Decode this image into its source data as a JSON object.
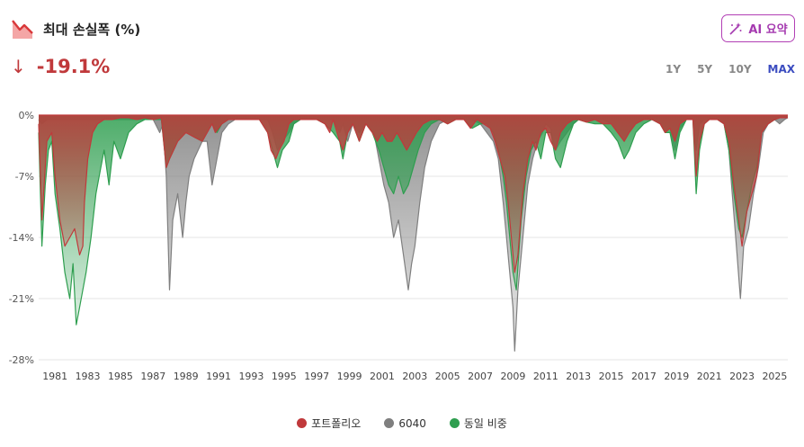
{
  "header": {
    "title": "최대 손실폭 (%)",
    "icon": "drawdown-chart-icon"
  },
  "ai_button": {
    "label": "AI 요약",
    "icon": "magic-wand-icon"
  },
  "current": {
    "arrow": "↓",
    "value": "-19.1%"
  },
  "ranges": [
    {
      "label": "1Y",
      "active": false
    },
    {
      "label": "5Y",
      "active": false
    },
    {
      "label": "10Y",
      "active": false
    },
    {
      "label": "MAX",
      "active": true
    }
  ],
  "colors": {
    "portfolio": "#c0393b",
    "sixty_forty": "#7f7f7f",
    "equal": "#2e9e4f",
    "accent": "#3b4cc0"
  },
  "chart_data": {
    "type": "area",
    "title": "최대 손실폭 (%)",
    "xlabel": "",
    "ylabel": "",
    "ylim": [
      -28,
      0
    ],
    "yticks": [
      "0%",
      "-7%",
      "-14%",
      "-21%",
      "-28%"
    ],
    "ytick_values": [
      0,
      -7,
      -14,
      -21,
      -28
    ],
    "xticks": [
      "1981",
      "1983",
      "1985",
      "1987",
      "1989",
      "1991",
      "1993",
      "1995",
      "1997",
      "1999",
      "2001",
      "2003",
      "2005",
      "2007",
      "2009",
      "2011",
      "2013",
      "2015",
      "2017",
      "2019",
      "2021",
      "2023",
      "2025"
    ],
    "xlim": [
      1980.0,
      2025.8
    ],
    "grid": true,
    "legend_position": "bottom-center",
    "series": [
      {
        "name": "포트폴리오",
        "color": "#c0393b",
        "x": [
          1980.0,
          1980.2,
          1980.4,
          1980.5,
          1980.8,
          1981.0,
          1981.3,
          1981.6,
          1981.9,
          1982.2,
          1982.5,
          1982.7,
          1982.8,
          1983.0,
          1983.3,
          1983.6,
          1984.0,
          1984.5,
          1985.0,
          1985.5,
          1986.0,
          1986.5,
          1987.0,
          1987.5,
          1987.8,
          1988.0,
          1988.5,
          1989.0,
          1989.5,
          1990.0,
          1990.3,
          1990.6,
          1990.8,
          1991.2,
          1991.6,
          1992.0,
          1992.5,
          1993.0,
          1993.5,
          1994.0,
          1994.2,
          1994.5,
          1994.7,
          1995.0,
          1995.3,
          1995.6,
          1996.0,
          1996.5,
          1997.0,
          1997.5,
          1997.8,
          1998.0,
          1998.4,
          1998.6,
          1998.9,
          1999.2,
          1999.6,
          2000.0,
          2000.4,
          2000.7,
          2001.0,
          2001.3,
          2001.6,
          2001.9,
          2002.2,
          2002.5,
          2002.8,
          2003.1,
          2003.5,
          2004.0,
          2004.5,
          2005.0,
          2005.5,
          2006.0,
          2006.4,
          2006.8,
          2007.2,
          2007.6,
          2007.9,
          2008.2,
          2008.5,
          2008.7,
          2008.9,
          2009.1,
          2009.3,
          2009.6,
          2009.9,
          2010.2,
          2010.4,
          2010.7,
          2011.0,
          2011.3,
          2011.6,
          2011.9,
          2012.3,
          2012.7,
          2013.0,
          2013.5,
          2014.0,
          2014.5,
          2015.0,
          2015.4,
          2015.8,
          2016.1,
          2016.5,
          2017.0,
          2017.5,
          2018.0,
          2018.3,
          2018.6,
          2018.9,
          2019.2,
          2019.6,
          2020.0,
          2020.2,
          2020.4,
          2020.7,
          2021.0,
          2021.5,
          2021.9,
          2022.2,
          2022.5,
          2022.8,
          2023.0,
          2023.3,
          2023.6,
          2023.9,
          2024.2,
          2024.6,
          2025.0,
          2025.3,
          2025.6,
          2025.8
        ],
        "y": [
          -1,
          -12,
          -6,
          -3,
          -2,
          -7,
          -12,
          -15,
          -14,
          -13,
          -16,
          -15,
          -10,
          -5,
          -2,
          -1,
          -0.5,
          -0.5,
          -0.3,
          -0.3,
          -0.5,
          -0.3,
          -0.5,
          -0.3,
          -6,
          -5,
          -3,
          -2,
          -2.5,
          -3,
          -2,
          -1,
          -2,
          -1,
          -0.5,
          -0.5,
          -0.5,
          -0.5,
          -0.5,
          -2,
          -4,
          -5,
          -4,
          -3,
          -1,
          -0.5,
          -0.5,
          -0.5,
          -0.5,
          -1,
          -2,
          -0.5,
          -3,
          -4,
          -2,
          -1,
          -3,
          -1,
          -2,
          -3,
          -2,
          -3,
          -3,
          -2,
          -3,
          -4,
          -3,
          -2,
          -1,
          -0.5,
          -0.5,
          -1,
          -0.5,
          -0.5,
          -1.5,
          -0.5,
          -1,
          -1.5,
          -3,
          -5,
          -7,
          -10,
          -14,
          -18,
          -16,
          -9,
          -5,
          -3,
          -4,
          -2,
          -1.5,
          -3,
          -4,
          -2,
          -1,
          -0.5,
          -0.5,
          -0.8,
          -0.5,
          -1,
          -1,
          -2,
          -3,
          -2,
          -1,
          -0.5,
          -0.5,
          -1,
          -2,
          -1.5,
          -3,
          -1,
          -0.5,
          -0.5,
          -7,
          -3,
          -1,
          -0.5,
          -0.5,
          -1,
          -3,
          -8,
          -12,
          -15,
          -11,
          -9,
          -7,
          -2,
          -1,
          -0.5,
          -0.3,
          -0.3,
          -0.3
        ]
      },
      {
        "name": "6040",
        "color": "#7f7f7f",
        "x": [
          1980.0,
          1980.2,
          1980.5,
          1981.0,
          1981.3,
          1981.6,
          1981.9,
          1982.2,
          1982.5,
          1982.8,
          1983.0,
          1983.5,
          1984.0,
          1984.5,
          1985.0,
          1985.5,
          1986.0,
          1986.5,
          1987.0,
          1987.4,
          1987.6,
          1987.8,
          1988.0,
          1988.2,
          1988.5,
          1988.8,
          1989.0,
          1989.2,
          1989.5,
          1990.0,
          1990.3,
          1990.6,
          1990.9,
          1991.2,
          1991.6,
          1992.0,
          1992.5,
          1993.0,
          1993.5,
          1994.0,
          1994.3,
          1994.6,
          1994.9,
          1995.3,
          1995.6,
          1996.0,
          1996.5,
          1997.0,
          1997.5,
          1998.0,
          1998.4,
          1998.6,
          1998.9,
          1999.2,
          1999.6,
          2000.0,
          2000.5,
          2000.8,
          2001.1,
          2001.4,
          2001.7,
          2002.0,
          2002.3,
          2002.6,
          2002.8,
          2003.0,
          2003.3,
          2003.6,
          2004.0,
          2004.5,
          2005.0,
          2005.5,
          2006.0,
          2006.5,
          2007.0,
          2007.4,
          2007.8,
          2008.1,
          2008.4,
          2008.6,
          2008.8,
          2009.0,
          2009.1,
          2009.3,
          2009.6,
          2009.9,
          2010.2,
          2010.5,
          2010.8,
          2011.0,
          2011.3,
          2011.6,
          2011.9,
          2012.3,
          2012.7,
          2013.0,
          2013.5,
          2014.0,
          2014.5,
          2015.0,
          2015.4,
          2015.8,
          2016.1,
          2016.5,
          2017.0,
          2017.5,
          2018.0,
          2018.3,
          2018.6,
          2018.9,
          2019.2,
          2019.6,
          2020.0,
          2020.2,
          2020.4,
          2020.7,
          2021.0,
          2021.5,
          2021.9,
          2022.2,
          2022.4,
          2022.7,
          2022.9,
          2023.1,
          2023.4,
          2023.7,
          2024.0,
          2024.3,
          2024.6,
          2025.0,
          2025.3,
          2025.6,
          2025.8
        ],
        "y": [
          -0.5,
          -1,
          -0.5,
          -0.5,
          -0.5,
          -0.5,
          -0.5,
          -0.5,
          -0.5,
          -0.5,
          -0.5,
          -0.5,
          -0.5,
          -0.5,
          -0.5,
          -0.5,
          -0.5,
          -0.5,
          -0.5,
          -2,
          -1,
          -7,
          -20,
          -12,
          -9,
          -14,
          -10,
          -7,
          -5,
          -3,
          -3,
          -8,
          -5,
          -2,
          -1,
          -0.5,
          -0.5,
          -0.5,
          -0.5,
          -0.5,
          -2,
          -4,
          -3,
          -2,
          -1,
          -0.5,
          -0.5,
          -0.5,
          -0.5,
          -0.5,
          -2,
          -1,
          -3,
          -1,
          -2,
          -1,
          -2,
          -5,
          -8,
          -10,
          -14,
          -12,
          -16,
          -20,
          -17,
          -15,
          -10,
          -6,
          -3,
          -1,
          -0.5,
          -0.5,
          -0.5,
          -0.5,
          -1,
          -2,
          -3,
          -5,
          -10,
          -14,
          -18,
          -22,
          -27,
          -20,
          -14,
          -8,
          -5,
          -3,
          -2,
          -1,
          -1.5,
          -4,
          -3,
          -2,
          -1,
          -0.5,
          -0.5,
          -0.5,
          -0.5,
          -1,
          -2,
          -3,
          -2,
          -1,
          -0.5,
          -0.5,
          -1,
          -2,
          -1.5,
          -4,
          -1.5,
          -0.5,
          -0.5,
          -4,
          -1,
          -0.5,
          -0.5,
          -0.5,
          -1,
          -4,
          -9,
          -16,
          -21,
          -15,
          -13,
          -9,
          -6,
          -2,
          -1,
          -0.5,
          -1,
          -0.5,
          -0.3
        ]
      },
      {
        "name": "동일 비중",
        "color": "#2e9e4f",
        "x": [
          1980.0,
          1980.2,
          1980.4,
          1980.6,
          1980.8,
          1981.0,
          1981.3,
          1981.6,
          1981.9,
          1982.1,
          1982.3,
          1982.5,
          1982.7,
          1982.9,
          1983.2,
          1983.5,
          1983.8,
          1984.0,
          1984.3,
          1984.6,
          1985.0,
          1985.5,
          1986.0,
          1986.5,
          1987.0,
          1987.5,
          1987.8,
          1988.0,
          1988.5,
          1989.0,
          1989.5,
          1990.0,
          1990.3,
          1990.6,
          1990.9,
          1991.2,
          1991.6,
          1992.0,
          1992.5,
          1993.0,
          1993.5,
          1994.0,
          1994.3,
          1994.6,
          1994.9,
          1995.3,
          1995.6,
          1996.0,
          1996.5,
          1997.0,
          1997.5,
          1998.0,
          1998.4,
          1998.6,
          1998.9,
          1999.2,
          1999.6,
          2000.0,
          2000.4,
          2000.8,
          2001.1,
          2001.4,
          2001.7,
          2002.0,
          2002.3,
          2002.6,
          2002.9,
          2003.2,
          2003.6,
          2004.0,
          2004.5,
          2005.0,
          2005.5,
          2006.0,
          2006.5,
          2007.0,
          2007.4,
          2007.8,
          2008.1,
          2008.4,
          2008.6,
          2008.8,
          2009.0,
          2009.2,
          2009.5,
          2009.8,
          2010.1,
          2010.4,
          2010.7,
          2011.0,
          2011.3,
          2011.6,
          2011.9,
          2012.3,
          2012.7,
          2013.0,
          2013.5,
          2014.0,
          2014.5,
          2015.0,
          2015.4,
          2015.8,
          2016.1,
          2016.5,
          2017.0,
          2017.5,
          2018.0,
          2018.3,
          2018.6,
          2018.9,
          2019.2,
          2019.6,
          2020.0,
          2020.2,
          2020.4,
          2020.7,
          2021.0,
          2021.5,
          2021.9,
          2022.2,
          2022.5,
          2022.8,
          2023.0,
          2023.3,
          2023.6,
          2023.9,
          2024.2,
          2024.6,
          2025.0,
          2025.3,
          2025.6,
          2025.8
        ],
        "y": [
          -2,
          -15,
          -8,
          -4,
          -3,
          -9,
          -13,
          -18,
          -21,
          -17,
          -24,
          -22,
          -20,
          -18,
          -14,
          -9,
          -6,
          -4,
          -8,
          -3,
          -5,
          -2,
          -1,
          -0.5,
          -0.5,
          -0.5,
          -6,
          -5,
          -3,
          -2,
          -2.5,
          -3,
          -2,
          -1,
          -2,
          -1,
          -0.5,
          -0.5,
          -0.5,
          -0.5,
          -0.5,
          -2,
          -4,
          -6,
          -4,
          -3,
          -1,
          -0.5,
          -0.5,
          -0.5,
          -1,
          -2,
          -3,
          -5,
          -2,
          -1,
          -3,
          -1,
          -2,
          -4,
          -6,
          -8,
          -9,
          -7,
          -9,
          -8,
          -6,
          -4,
          -2,
          -1,
          -0.5,
          -1,
          -0.5,
          -0.5,
          -1.5,
          -1,
          -1,
          -2,
          -4,
          -7,
          -10,
          -14,
          -18,
          -20,
          -12,
          -7,
          -4,
          -3,
          -5,
          -2,
          -2,
          -5,
          -6,
          -3,
          -1,
          -0.5,
          -0.8,
          -1,
          -1,
          -2,
          -3,
          -5,
          -4,
          -2,
          -1,
          -0.5,
          -1,
          -2,
          -2,
          -5,
          -2,
          -0.5,
          -0.5,
          -9,
          -4,
          -1,
          -0.5,
          -0.5,
          -1,
          -4,
          -9,
          -13,
          -14,
          -11,
          -8,
          -6,
          -2,
          -1,
          -0.5,
          -0.3,
          -0.3,
          -0.3
        ]
      }
    ]
  }
}
